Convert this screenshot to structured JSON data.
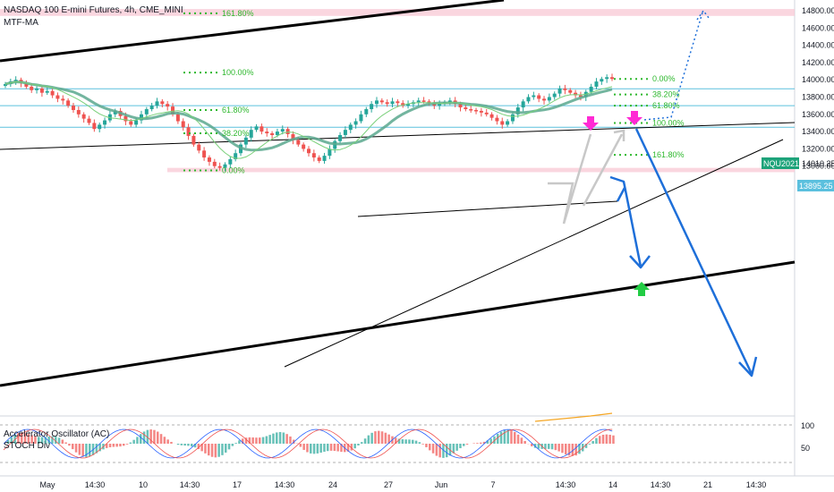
{
  "header": {
    "symbol_line": "NASDAQ 100 E-mini Futures, 4h, CME_MINI",
    "indicator": "MTF-MA"
  },
  "oscillator": {
    "label_ac": "Accelerator Oscillator (AC)",
    "label_stoch": "STOCH Div",
    "tick_100": "100",
    "tick_50": "50"
  },
  "price_tags": {
    "symbol_tag": "NQU2021",
    "last_price": "14010.25",
    "current_price": "13895.25",
    "tag_color": "#1ea37a",
    "line_color": "#5bc0de"
  },
  "colors": {
    "up": "#26a69a",
    "down": "#ef5350",
    "fib": "#2eb82e",
    "channel": "#000000",
    "projection": "#1e6fd9",
    "zone": "#f8c8d4",
    "ma_thick": "#5aa88e",
    "ma_thin": "#7ad07a",
    "marker_magenta": "#ff2ad4",
    "marker_green": "#22cc44",
    "marker_gray": "#c8c8c8"
  },
  "chart_data": {
    "type": "candlestick",
    "title": "NASDAQ 100 E-mini Futures, 4h, CME_MINI",
    "ylim": [
      12800,
      14800
    ],
    "y_ticks": [
      14800,
      14600,
      14400,
      14200,
      14000,
      13800,
      13600,
      13400,
      13200,
      13000,
      12800
    ],
    "x_ticks": [
      "May",
      "14:30",
      "10",
      "14:30",
      "17",
      "14:30",
      "24",
      "27",
      "Jun",
      "7",
      "14:30",
      "14",
      "14:30",
      "21",
      "14:30"
    ],
    "fib_levels": [
      {
        "label": "161.80%",
        "price": 14770
      },
      {
        "label": "100.00%",
        "price": 14084
      },
      {
        "label": "61.80%",
        "price": 13650
      },
      {
        "label": "38.20%",
        "price": 13380
      },
      {
        "label": "0.00%",
        "price": 12950
      },
      {
        "label": "0.00%",
        "price": 14010
      },
      {
        "label": "38.20%",
        "price": 13830
      },
      {
        "label": "61.80%",
        "price": 13700
      },
      {
        "label": "100.00%",
        "price": 13500
      },
      {
        "label": "161.80%",
        "price": 13130
      }
    ],
    "horizontal_lines": [
      13895.25,
      13700,
      13450
    ],
    "zones": [
      {
        "from": 14740,
        "to": 14820
      },
      {
        "from": 12930,
        "to": 12980
      }
    ],
    "closes": [
      13950,
      13980,
      14000,
      13960,
      13920,
      13880,
      13900,
      13850,
      13870,
      13820,
      13780,
      13760,
      13700,
      13650,
      13600,
      13550,
      13500,
      13430,
      13480,
      13530,
      13600,
      13640,
      13580,
      13520,
      13480,
      13530,
      13600,
      13660,
      13700,
      13750,
      13720,
      13690,
      13600,
      13520,
      13450,
      13350,
      13250,
      13180,
      13100,
      13050,
      13000,
      12980,
      13020,
      13080,
      13150,
      13250,
      13330,
      13420,
      13460,
      13400,
      13380,
      13360,
      13400,
      13430,
      13370,
      13300,
      13250,
      13200,
      13150,
      13100,
      13060,
      13120,
      13200,
      13290,
      13360,
      13420,
      13480,
      13520,
      13600,
      13660,
      13720,
      13760,
      13740,
      13720,
      13750,
      13730,
      13700,
      13720,
      13740,
      13760,
      13750,
      13730,
      13700,
      13720,
      13740,
      13760,
      13720,
      13680,
      13660,
      13650,
      13640,
      13620,
      13600,
      13560,
      13520,
      13480,
      13520,
      13600,
      13680,
      13750,
      13800,
      13820,
      13780,
      13760,
      13800,
      13840,
      13900,
      13880,
      13850,
      13820,
      13800,
      13860,
      13920,
      13980,
      14010,
      14030,
      14010
    ]
  }
}
